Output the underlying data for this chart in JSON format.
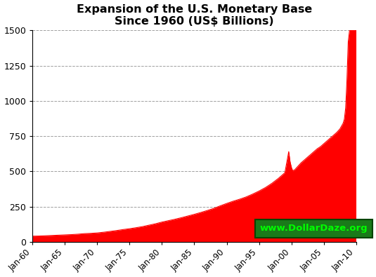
{
  "title_line1": "Expansion of the U.S. Monetary Base",
  "title_line2": "Since 1960 (US$ Billions)",
  "fill_color": "#FF0000",
  "line_color": "#FF0000",
  "background_color": "#FFFFFF",
  "grid_color": "#888888",
  "watermark_text": "www.DollarDaze.org",
  "watermark_bg": "#1a7a1a",
  "watermark_fg": "#00FF00",
  "ylim": [
    0,
    1500
  ],
  "yticks": [
    0,
    250,
    500,
    750,
    1000,
    1250,
    1500
  ],
  "xlabel_years": [
    1960,
    1965,
    1970,
    1975,
    1980,
    1985,
    1990,
    1995,
    2000,
    2005,
    2010
  ],
  "years": [
    1960.0,
    1961.0,
    1962.0,
    1963.0,
    1964.0,
    1965.0,
    1966.0,
    1967.0,
    1968.0,
    1969.0,
    1970.0,
    1971.0,
    1972.0,
    1973.0,
    1974.0,
    1975.0,
    1976.0,
    1977.0,
    1978.0,
    1979.0,
    1980.0,
    1981.0,
    1982.0,
    1983.0,
    1984.0,
    1985.0,
    1986.0,
    1987.0,
    1988.0,
    1989.0,
    1990.0,
    1991.0,
    1992.0,
    1993.0,
    1994.0,
    1995.0,
    1996.0,
    1997.0,
    1998.0,
    1999.0,
    1999.6,
    1999.8,
    2000.0,
    2000.2,
    2000.5,
    2001.0,
    2001.5,
    2002.0,
    2002.5,
    2003.0,
    2003.5,
    2004.0,
    2004.5,
    2005.0,
    2005.5,
    2006.0,
    2006.5,
    2007.0,
    2007.5,
    2008.0,
    2008.2,
    2008.4,
    2008.6,
    2008.8,
    2009.0,
    2009.3,
    2009.6,
    2010.0
  ],
  "values": [
    40,
    41,
    43,
    45,
    47,
    49,
    51,
    54,
    58,
    60,
    63,
    68,
    74,
    80,
    87,
    93,
    100,
    108,
    118,
    128,
    140,
    150,
    160,
    171,
    183,
    195,
    208,
    222,
    237,
    255,
    272,
    288,
    302,
    318,
    338,
    360,
    385,
    415,
    450,
    490,
    640,
    570,
    530,
    505,
    510,
    535,
    560,
    580,
    600,
    620,
    640,
    660,
    675,
    695,
    715,
    735,
    755,
    775,
    800,
    840,
    870,
    950,
    1150,
    1420,
    1500,
    1550,
    1560,
    1510
  ]
}
